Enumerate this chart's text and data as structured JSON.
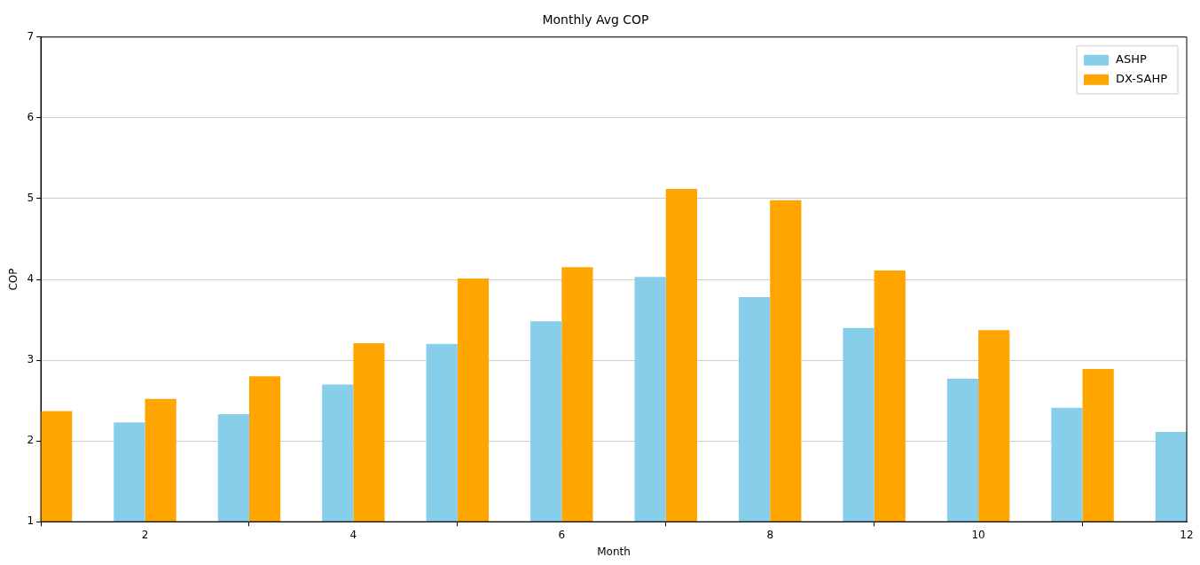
{
  "chart_data": {
    "type": "bar",
    "title": "Monthly Avg COP",
    "xlabel": "Month",
    "ylabel": "COP",
    "x": [
      1,
      2,
      3,
      4,
      5,
      6,
      7,
      8,
      9,
      10,
      11,
      12
    ],
    "series": [
      {
        "name": "ASHP",
        "color": "#87ceeb",
        "values": [
          null,
          2.23,
          2.33,
          2.7,
          3.2,
          3.48,
          4.03,
          3.78,
          3.4,
          2.77,
          2.41,
          2.11
        ]
      },
      {
        "name": "DX-SAHP",
        "color": "#ffa500",
        "values": [
          2.37,
          2.52,
          2.8,
          3.21,
          4.01,
          4.15,
          5.12,
          4.98,
          4.11,
          3.37,
          2.89,
          null
        ]
      }
    ],
    "xlim": [
      1,
      12
    ],
    "xticks": [
      2,
      4,
      6,
      8,
      10,
      12
    ],
    "ylim": [
      1,
      7
    ],
    "yticks": [
      1,
      2,
      3,
      4,
      5,
      6,
      7
    ],
    "grid": "y",
    "legend": "top right"
  }
}
